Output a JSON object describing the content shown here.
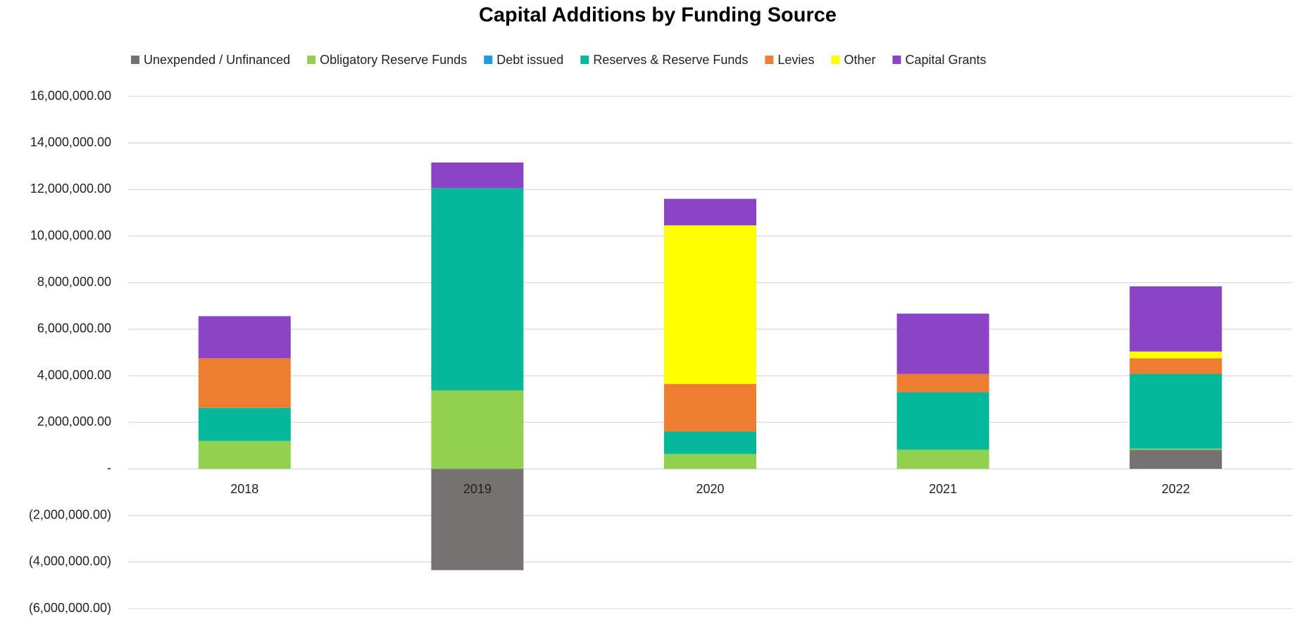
{
  "chart_data": {
    "type": "stacked_bar",
    "title": "Capital Additions by Funding Source",
    "categories": [
      "2018",
      "2019",
      "2020",
      "2021",
      "2022"
    ],
    "series": [
      {
        "name": "Unexpended / Unfinanced",
        "color": "#767171",
        "values": [
          0,
          -4350000,
          0,
          0,
          820000
        ]
      },
      {
        "name": "Obligatory Reserve Funds",
        "color": "#92d050",
        "values": [
          1200000,
          3370000,
          640000,
          820000,
          50000
        ]
      },
      {
        "name": "Debt issued",
        "color": "#1f9be6",
        "values": [
          0,
          0,
          0,
          0,
          0
        ]
      },
      {
        "name": "Reserves & Reserve Funds",
        "color": "#06b89b",
        "values": [
          1420000,
          8690000,
          960000,
          2480000,
          3210000
        ]
      },
      {
        "name": "Levies",
        "color": "#ed7d31",
        "values": [
          2130000,
          0,
          2050000,
          780000,
          670000
        ]
      },
      {
        "name": "Other",
        "color": "#ffff00",
        "values": [
          0,
          0,
          6810000,
          0,
          290000
        ]
      },
      {
        "name": "Capital Grants",
        "color": "#8b44c6",
        "values": [
          1810000,
          1100000,
          1140000,
          2590000,
          2800000
        ]
      }
    ],
    "ylim": [
      -6000000,
      16000000
    ],
    "yticks": [
      {
        "value": -6000000,
        "label": "(6,000,000.00)"
      },
      {
        "value": -4000000,
        "label": "(4,000,000.00)"
      },
      {
        "value": -2000000,
        "label": "(2,000,000.00)"
      },
      {
        "value": 0,
        "label": "-"
      },
      {
        "value": 2000000,
        "label": "2,000,000.00"
      },
      {
        "value": 4000000,
        "label": "4,000,000.00"
      },
      {
        "value": 6000000,
        "label": "6,000,000.00"
      },
      {
        "value": 8000000,
        "label": "8,000,000.00"
      },
      {
        "value": 10000000,
        "label": "10,000,000.00"
      },
      {
        "value": 12000000,
        "label": "12,000,000.00"
      },
      {
        "value": 14000000,
        "label": "14,000,000.00"
      },
      {
        "value": 16000000,
        "label": "16,000,000.00"
      }
    ],
    "grid": true,
    "legend": "top"
  }
}
